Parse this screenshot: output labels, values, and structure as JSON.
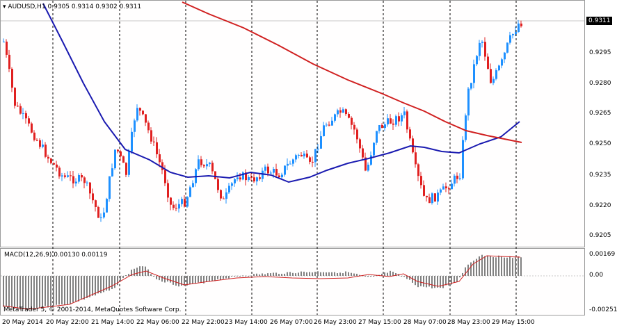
{
  "symbol_header": {
    "symbol": "AUDUSD,H1",
    "ohlc": "0.9305 0.9314 0.9302 0.9311"
  },
  "current_price": "0.9311",
  "price_axis": [
    "0.9295",
    "0.9280",
    "0.9265",
    "0.9250",
    "0.9235",
    "0.9220",
    "0.9205"
  ],
  "macd_header": "MACD(12,26,9) 0.00130 0.00119",
  "macd_axis": [
    "0.00169",
    "0.00",
    "-0.00251"
  ],
  "copyright": "MetaTrader 5, © 2001-2014, MetaQuotes Software Corp.",
  "time_axis": [
    "20 May 2014",
    "20 May 22:00",
    "21 May 14:00",
    "22 May 06:00",
    "22 May 22:00",
    "23 May 14:00",
    "26 May 07:00",
    "26 May 23:00",
    "27 May 15:00",
    "28 May 07:00",
    "28 May 23:00",
    "29 May 15:00"
  ],
  "colors": {
    "bull": "#1e90ff",
    "bear": "#e02020",
    "ma_fast": "#1a1ab0",
    "ma_slow": "#d02020",
    "macd_hist": "#808080",
    "macd_signal": "#d02020",
    "grid": "#000000"
  }
}
